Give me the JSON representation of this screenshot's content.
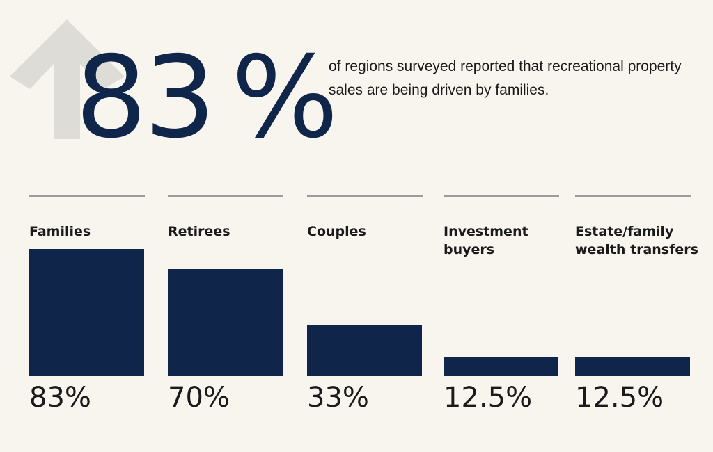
{
  "headline": {
    "number": "83",
    "percent_sign": "%",
    "description": "of regions surveyed reported that recreational property sales are being driven by families."
  },
  "colors": {
    "bar": "#0f264a",
    "background": "#f8f5ef",
    "arrow": "#dedcd6",
    "rule": "#9c9c9c"
  },
  "icons": {
    "hero": "up-arrow-icon"
  },
  "chart_data": {
    "type": "bar",
    "categories": [
      "Families",
      "Retirees",
      "Couples",
      "Investment\nbuyers",
      "Estate/family\nwealth transfers"
    ],
    "values": [
      83,
      70,
      33,
      12.5,
      12.5
    ],
    "value_labels": [
      "83%",
      "70%",
      "33%",
      "12.5%",
      "12.5%"
    ],
    "unit": "%",
    "title": "",
    "xlabel": "",
    "ylabel": "",
    "ylim": [
      0,
      100
    ],
    "grid": false,
    "legend": "none"
  }
}
